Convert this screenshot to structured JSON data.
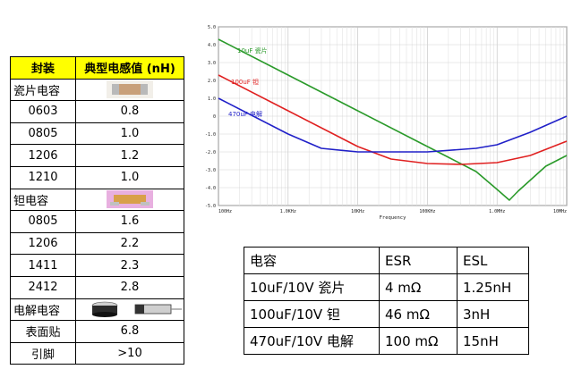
{
  "package_table": {
    "headers": [
      "封装",
      "典型电感值 (nH)"
    ],
    "rows": [
      {
        "label": "瓷片电容",
        "value": "",
        "image": "ceramic-chip-icon"
      },
      {
        "label": "0603",
        "value": "0.8"
      },
      {
        "label": "0805",
        "value": "1.0"
      },
      {
        "label": "1206",
        "value": "1.2"
      },
      {
        "label": "1210",
        "value": "1.0"
      },
      {
        "label": "钽电容",
        "value": "",
        "image": "tantalum-chip-icon"
      },
      {
        "label": "0805",
        "value": "1.6"
      },
      {
        "label": "1206",
        "value": "2.2"
      },
      {
        "label": "1411",
        "value": "2.3"
      },
      {
        "label": "2412",
        "value": "2.8"
      },
      {
        "label": "电解电容",
        "value": "",
        "image": "electrolytic-cap-icon"
      },
      {
        "label": "表面贴",
        "value": "6.8"
      },
      {
        "label": "引脚",
        "value": ">10"
      }
    ]
  },
  "esr_table": {
    "headers": [
      "电容",
      "ESR",
      "ESL"
    ],
    "rows": [
      [
        "10uF/10V 瓷片",
        "4 mΩ",
        "1.25nH"
      ],
      [
        "100uF/10V 钽",
        "46 mΩ",
        "3nH"
      ],
      [
        "470uF/10V 电解",
        "100 mΩ",
        "15nH"
      ]
    ]
  },
  "chart_data": {
    "type": "line",
    "title": "",
    "xlabel": "Frequency",
    "ylabel": "",
    "x_scale": "log",
    "xlim": [
      100,
      10000000
    ],
    "ylim": [
      -5.0,
      5.0
    ],
    "x_ticks": [
      "100Hz",
      "1.0KHz",
      "10KHz",
      "100KHz",
      "1.0MHz",
      "10MHz"
    ],
    "y_ticks": [
      "5.0",
      "4.0",
      "3.0",
      "2.0",
      "1.0",
      "0",
      "-1.0",
      "-2.0",
      "-3.0",
      "-4.0",
      "-5.0"
    ],
    "grid": true,
    "series": [
      {
        "name": "10uF 瓷片",
        "color": "#2a9a2a",
        "x": [
          100,
          1000,
          10000,
          100000,
          200000,
          500000,
          1000000,
          1500000,
          2000000,
          5000000,
          10000000
        ],
        "y": [
          4.3,
          2.3,
          0.3,
          -1.7,
          -2.3,
          -3.1,
          -4.1,
          -4.7,
          -4.2,
          -2.8,
          -2.2
        ]
      },
      {
        "name": "100uF 钽",
        "color": "#e02020",
        "x": [
          100,
          1000,
          10000,
          30000,
          100000,
          300000,
          1000000,
          3000000,
          10000000
        ],
        "y": [
          2.3,
          0.3,
          -1.7,
          -2.4,
          -2.65,
          -2.7,
          -2.6,
          -2.2,
          -1.4
        ]
      },
      {
        "name": "470uF 电解",
        "color": "#2020c8",
        "x": [
          100,
          1000,
          3000,
          10000,
          100000,
          500000,
          1000000,
          3000000,
          10000000
        ],
        "y": [
          1.0,
          -1.0,
          -1.8,
          -2.0,
          -2.0,
          -1.8,
          -1.6,
          -0.9,
          0.0
        ]
      }
    ]
  }
}
